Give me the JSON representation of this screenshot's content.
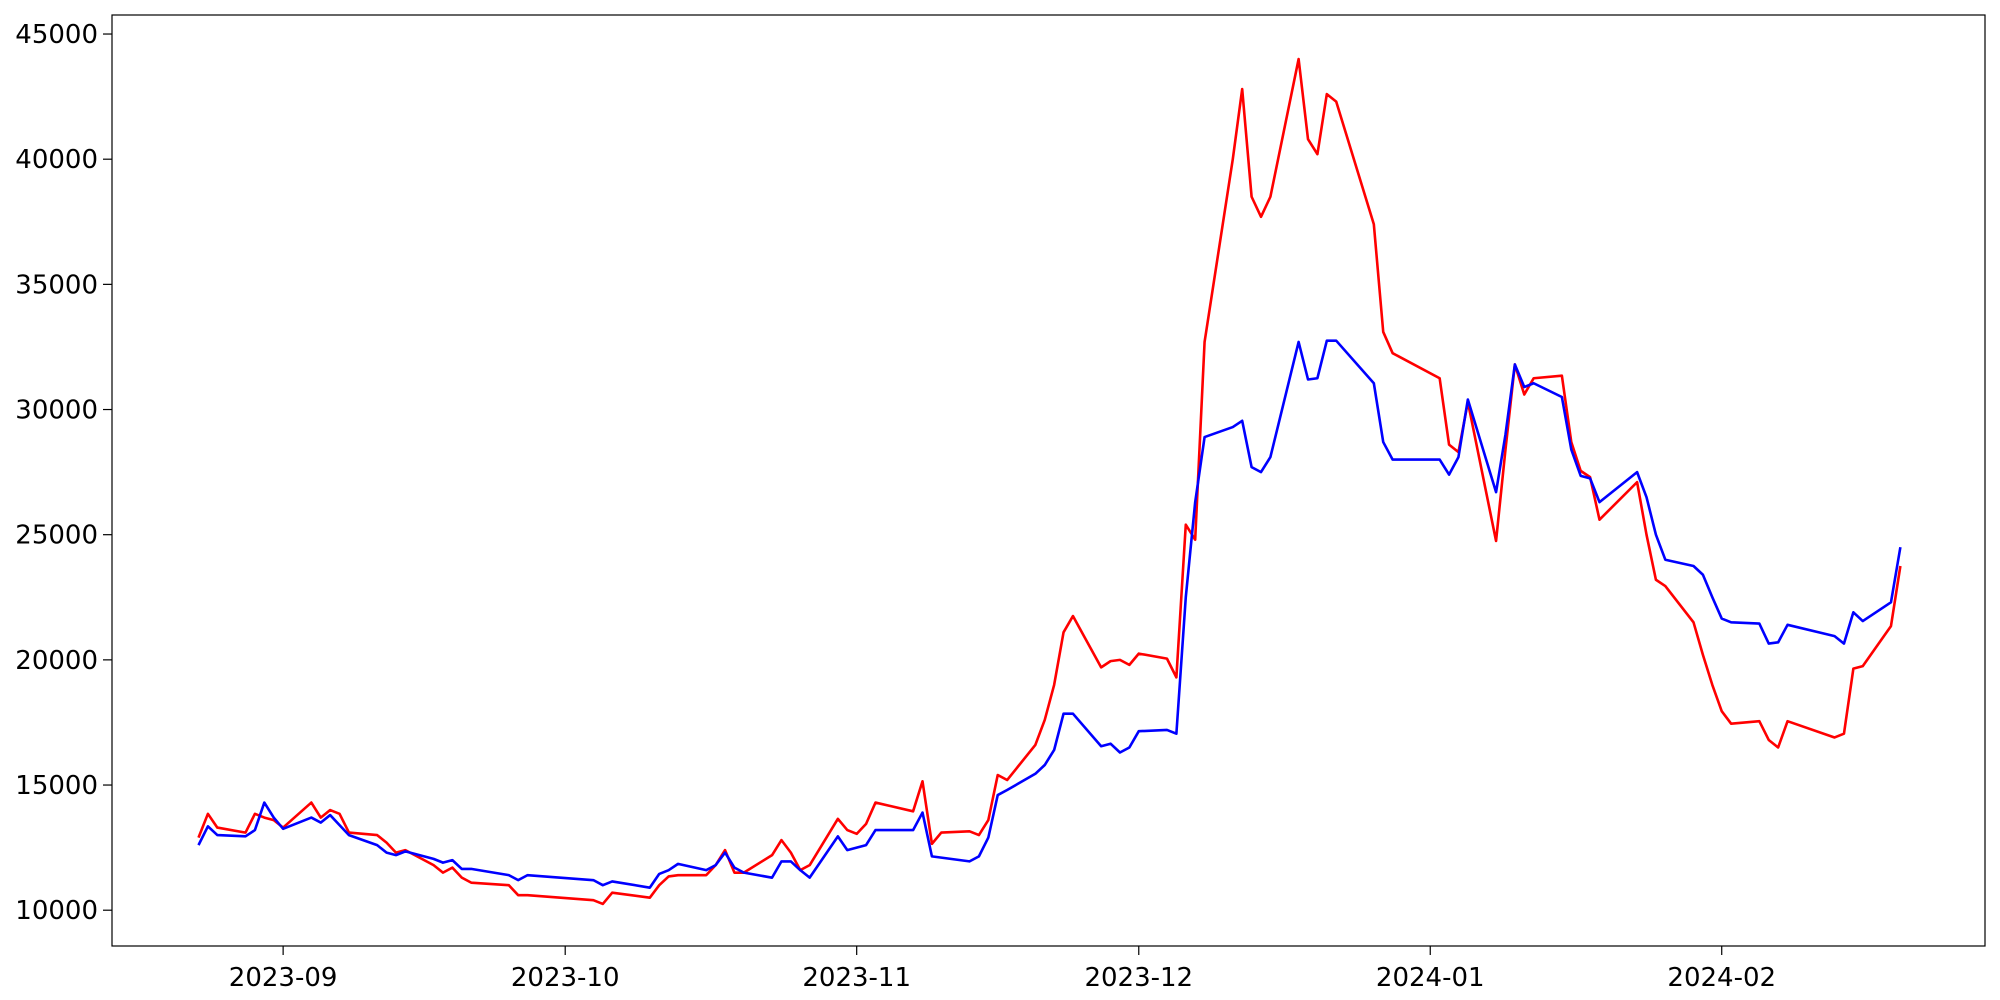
{
  "chart_data": {
    "type": "line",
    "x": [
      -9,
      -8,
      -7,
      -4,
      -3,
      -2,
      -1,
      0,
      3,
      4,
      5,
      6,
      7,
      10,
      11,
      12,
      13,
      16,
      17,
      18,
      19,
      20,
      24,
      25,
      26,
      33,
      34,
      35,
      39,
      40,
      41,
      42,
      45,
      46,
      47,
      48,
      49,
      52,
      53,
      54,
      55,
      56,
      59,
      60,
      61,
      62,
      63,
      67,
      68,
      69,
      70,
      73,
      74,
      75,
      76,
      77,
      80,
      81,
      82,
      83,
      84,
      87,
      88,
      89,
      90,
      91,
      94,
      95,
      96,
      97,
      98,
      101,
      102,
      103,
      104,
      105,
      108,
      109,
      110,
      111,
      112,
      116,
      117,
      118,
      123,
      124,
      125,
      126,
      129,
      130,
      131,
      132,
      133,
      136,
      137,
      138,
      139,
      140,
      144,
      145,
      146,
      147,
      150,
      151,
      152,
      153,
      154,
      157,
      158,
      159,
      160,
      165,
      166,
      167,
      168,
      171,
      172
    ],
    "series": [
      {
        "color": "#ff0000",
        "values": [
          12900,
          13850,
          13300,
          13100,
          13850,
          13700,
          13600,
          13300,
          14300,
          13700,
          14000,
          13850,
          13100,
          13000,
          12700,
          12300,
          12400,
          11800,
          11500,
          11700,
          11300,
          11100,
          11000,
          10600,
          10600,
          10400,
          10250,
          10700,
          10500,
          11000,
          11350,
          11400,
          11400,
          11800,
          12400,
          11500,
          11500,
          12200,
          12800,
          12300,
          11600,
          11800,
          13650,
          13200,
          13050,
          13450,
          14300,
          13950,
          15150,
          12650,
          13100,
          13150,
          13000,
          13600,
          15400,
          15200,
          16600,
          17600,
          19000,
          21100,
          21750,
          19700,
          19950,
          20000,
          19800,
          20250,
          20050,
          19300,
          25400,
          24800,
          32700,
          40000,
          42800,
          38500,
          37700,
          38500,
          44000,
          40800,
          40200,
          42600,
          42300,
          37400,
          33100,
          32250,
          31250,
          28600,
          28300,
          30300,
          24750,
          28400,
          31800,
          30600,
          31250,
          31350,
          28700,
          27550,
          27300,
          25600,
          27100,
          25000,
          23200,
          22950,
          21500,
          20200,
          19000,
          17950,
          17450,
          17550,
          16800,
          16500,
          17550,
          16900,
          17050,
          19650,
          19750,
          21350,
          23750
        ]
      },
      {
        "color": "#0000ff",
        "values": [
          12600,
          13350,
          13000,
          12950,
          13200,
          14300,
          13700,
          13250,
          13700,
          13500,
          13800,
          13400,
          13000,
          12600,
          12300,
          12200,
          12350,
          12050,
          11900,
          12000,
          11650,
          11650,
          11400,
          11200,
          11400,
          11200,
          11000,
          11150,
          10900,
          11450,
          11600,
          11850,
          11600,
          11800,
          12300,
          11700,
          11500,
          11300,
          11950,
          11950,
          11600,
          11300,
          12950,
          12400,
          12500,
          12600,
          13200,
          13200,
          13900,
          12150,
          12100,
          11950,
          12150,
          12900,
          14600,
          14800,
          15450,
          15800,
          16400,
          17850,
          17850,
          16550,
          16650,
          16300,
          16500,
          17150,
          17200,
          17050,
          22500,
          26300,
          28900,
          29300,
          29550,
          27700,
          27500,
          28100,
          32700,
          31200,
          31250,
          32750,
          32750,
          31050,
          28700,
          28000,
          28000,
          27400,
          28100,
          30400,
          26700,
          29000,
          31800,
          30900,
          31050,
          30500,
          28400,
          27350,
          27250,
          26300,
          27500,
          26500,
          25000,
          24000,
          23750,
          23400,
          22500,
          21650,
          21500,
          21450,
          20650,
          20700,
          21400,
          20950,
          20650,
          21900,
          21550,
          22300,
          24500
        ]
      }
    ],
    "xlim": [
      -18.2,
      181
    ],
    "xticks": [
      {
        "value": 0,
        "label": "2023-09"
      },
      {
        "value": 30,
        "label": "2023-10"
      },
      {
        "value": 61,
        "label": "2023-11"
      },
      {
        "value": 91,
        "label": "2023-12"
      },
      {
        "value": 122,
        "label": "2024-01"
      },
      {
        "value": 153,
        "label": "2024-02"
      }
    ],
    "ylim": [
      8570,
      45760
    ],
    "yticks": [
      10000,
      15000,
      20000,
      25000,
      30000,
      35000,
      40000,
      45000
    ],
    "grid": false
  }
}
